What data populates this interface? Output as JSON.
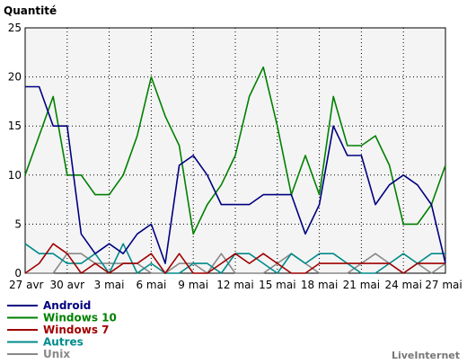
{
  "chart_data": {
    "type": "line",
    "ylabel": "Quantité",
    "ylim": [
      0,
      25
    ],
    "yticks": [
      0,
      5,
      10,
      15,
      20,
      25
    ],
    "x": [
      "27 avr",
      "28 avr",
      "29 avr",
      "30 avr",
      "1 mai",
      "2 mai",
      "3 mai",
      "4 mai",
      "5 mai",
      "6 mai",
      "7 mai",
      "8 mai",
      "9 mai",
      "10 mai",
      "11 mai",
      "12 mai",
      "13 mai",
      "14 mai",
      "15 mai",
      "16 mai",
      "17 mai",
      "18 mai",
      "19 mai",
      "20 mai",
      "21 mai",
      "22 mai",
      "23 mai",
      "24 mai",
      "25 mai",
      "26 mai",
      "27 mai"
    ],
    "xtick_labels": [
      "27 avr",
      "30 avr",
      "3 mai",
      "6 mai",
      "9 mai",
      "12 mai",
      "15 mai",
      "18 mai",
      "21 mai",
      "24 mai",
      "27 mai"
    ],
    "grid": true,
    "legend_position": "bottom-left",
    "series": [
      {
        "name": "Android",
        "color": "#000080",
        "values": [
          19,
          19,
          15,
          15,
          4,
          2,
          3,
          2,
          4,
          5,
          1,
          11,
          12,
          10,
          7,
          7,
          7,
          8,
          8,
          8,
          4,
          7,
          15,
          12,
          12,
          7,
          9,
          10,
          9,
          7,
          1
        ]
      },
      {
        "name": "Windows 10",
        "color": "#008000",
        "values": [
          10,
          14,
          18,
          10,
          10,
          8,
          8,
          10,
          14,
          20,
          16,
          13,
          4,
          7,
          9,
          12,
          18,
          21,
          15,
          8,
          12,
          8,
          18,
          13,
          13,
          14,
          11,
          5,
          5,
          7,
          11
        ]
      },
      {
        "name": "Windows 7",
        "color": "#a00000",
        "values": [
          0,
          1,
          3,
          2,
          0,
          1,
          0,
          1,
          1,
          2,
          0,
          2,
          0,
          0,
          1,
          2,
          1,
          2,
          1,
          0,
          0,
          1,
          1,
          1,
          1,
          1,
          1,
          0,
          1,
          1,
          1
        ]
      },
      {
        "name": "Autres",
        "color": "#008b8b",
        "values": [
          3,
          2,
          2,
          1,
          1,
          2,
          0,
          3,
          0,
          1,
          0,
          0,
          1,
          1,
          0,
          2,
          2,
          1,
          0,
          2,
          1,
          2,
          2,
          1,
          0,
          0,
          1,
          2,
          1,
          2,
          2
        ]
      },
      {
        "name": "Unix",
        "color": "#888888",
        "values": [
          0,
          0,
          0,
          2,
          2,
          1,
          1,
          1,
          1,
          0,
          0,
          1,
          1,
          0,
          2,
          0,
          0,
          0,
          1,
          2,
          1,
          0,
          0,
          0,
          1,
          2,
          1,
          0,
          1,
          0,
          1
        ]
      }
    ]
  },
  "brand": "LiveInternet"
}
